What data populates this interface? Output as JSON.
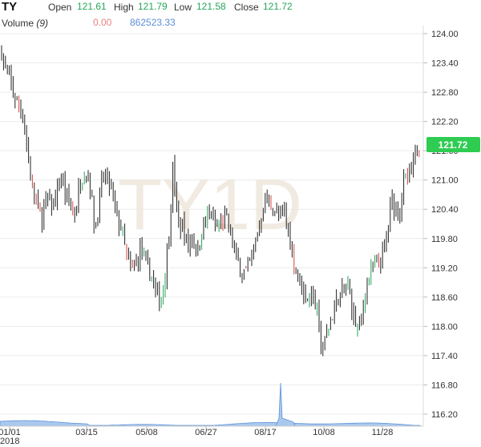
{
  "header": {
    "symbol": "TY",
    "open_label": "Open",
    "open_value": "121.61",
    "high_label": "High",
    "high_value": "121.79",
    "low_label": "Low",
    "low_value": "121.58",
    "close_label": "Close",
    "close_value": "121.72",
    "volume_label": "Volume",
    "volume_period": "(9)",
    "volume_change": "0.00",
    "volume_value": "862523.33"
  },
  "watermark": "TY1D",
  "last_price_tag": "121.72",
  "colors": {
    "up": "#26a65b",
    "down": "#d64541",
    "neutral": "#222222",
    "volume_fill": "#aac8ee",
    "volume_line": "#5b93d9",
    "tag_bg": "#2ecc51",
    "grid": "#ececec",
    "change_red": "#e88080",
    "vol_blue": "#5b8fd9"
  },
  "chart_data": {
    "type": "candlestick",
    "y_ticks": [
      "124.00",
      "123.40",
      "122.80",
      "122.20",
      "121.60",
      "121.00",
      "120.40",
      "119.80",
      "119.20",
      "118.60",
      "118.00",
      "117.40",
      "116.80",
      "116.20"
    ],
    "x_ticks": [
      "01/01",
      "03/15",
      "05/08",
      "06/27",
      "08/17",
      "10/08",
      "11/28"
    ],
    "x_sub_label": "2018",
    "ylim": [
      116.0,
      124.2
    ],
    "anchors": [
      [
        0,
        123.9
      ],
      [
        5,
        123.3
      ],
      [
        10,
        123.2
      ],
      [
        16,
        122.8
      ],
      [
        22,
        122.6
      ],
      [
        28,
        122.4
      ],
      [
        34,
        121.6
      ],
      [
        40,
        120.9
      ],
      [
        46,
        120.5
      ],
      [
        52,
        120.2
      ],
      [
        58,
        120.6
      ],
      [
        64,
        120.5
      ],
      [
        70,
        120.6
      ],
      [
        76,
        121.1
      ],
      [
        82,
        120.6
      ],
      [
        88,
        120.5
      ],
      [
        94,
        120.3
      ],
      [
        100,
        121.0
      ],
      [
        106,
        121.2
      ],
      [
        112,
        121.0
      ],
      [
        118,
        120.0
      ],
      [
        124,
        120.5
      ],
      [
        128,
        121.1
      ],
      [
        134,
        121.0
      ],
      [
        140,
        120.7
      ],
      [
        146,
        120.2
      ],
      [
        152,
        120.0
      ],
      [
        158,
        119.4
      ],
      [
        164,
        119.1
      ],
      [
        170,
        119.3
      ],
      [
        176,
        119.6
      ],
      [
        182,
        119.2
      ],
      [
        188,
        119.1
      ],
      [
        194,
        118.7
      ],
      [
        200,
        118.5
      ],
      [
        206,
        119.1
      ],
      [
        212,
        120.2
      ],
      [
        216,
        121.3
      ],
      [
        222,
        120.0
      ],
      [
        228,
        120.1
      ],
      [
        234,
        119.6
      ],
      [
        240,
        119.9
      ],
      [
        246,
        119.5
      ],
      [
        252,
        120.0
      ],
      [
        258,
        120.2
      ],
      [
        264,
        120.3
      ],
      [
        270,
        120.0
      ],
      [
        276,
        120.1
      ],
      [
        282,
        120.2
      ],
      [
        288,
        119.9
      ],
      [
        294,
        119.4
      ],
      [
        300,
        119.2
      ],
      [
        306,
        119.1
      ],
      [
        312,
        119.3
      ],
      [
        318,
        119.7
      ],
      [
        324,
        120.1
      ],
      [
        330,
        120.6
      ],
      [
        336,
        120.5
      ],
      [
        342,
        120.4
      ],
      [
        348,
        120.2
      ],
      [
        354,
        120.4
      ],
      [
        360,
        119.9
      ],
      [
        366,
        119.4
      ],
      [
        372,
        119.0
      ],
      [
        378,
        118.7
      ],
      [
        384,
        118.6
      ],
      [
        390,
        118.7
      ],
      [
        396,
        118.2
      ],
      [
        400,
        117.6
      ],
      [
        404,
        117.6
      ],
      [
        410,
        118.0
      ],
      [
        416,
        118.3
      ],
      [
        422,
        118.6
      ],
      [
        428,
        118.7
      ],
      [
        434,
        118.8
      ],
      [
        440,
        118.3
      ],
      [
        446,
        117.9
      ],
      [
        450,
        118.0
      ],
      [
        456,
        118.8
      ],
      [
        462,
        119.1
      ],
      [
        468,
        119.2
      ],
      [
        474,
        119.3
      ],
      [
        478,
        119.5
      ],
      [
        484,
        119.9
      ],
      [
        488,
        120.6
      ],
      [
        492,
        120.5
      ],
      [
        498,
        120.3
      ],
      [
        504,
        121.0
      ],
      [
        510,
        121.0
      ],
      [
        516,
        121.3
      ],
      [
        520,
        121.7
      ],
      [
        524,
        121.72
      ]
    ],
    "volume_spike_x": 350
  }
}
